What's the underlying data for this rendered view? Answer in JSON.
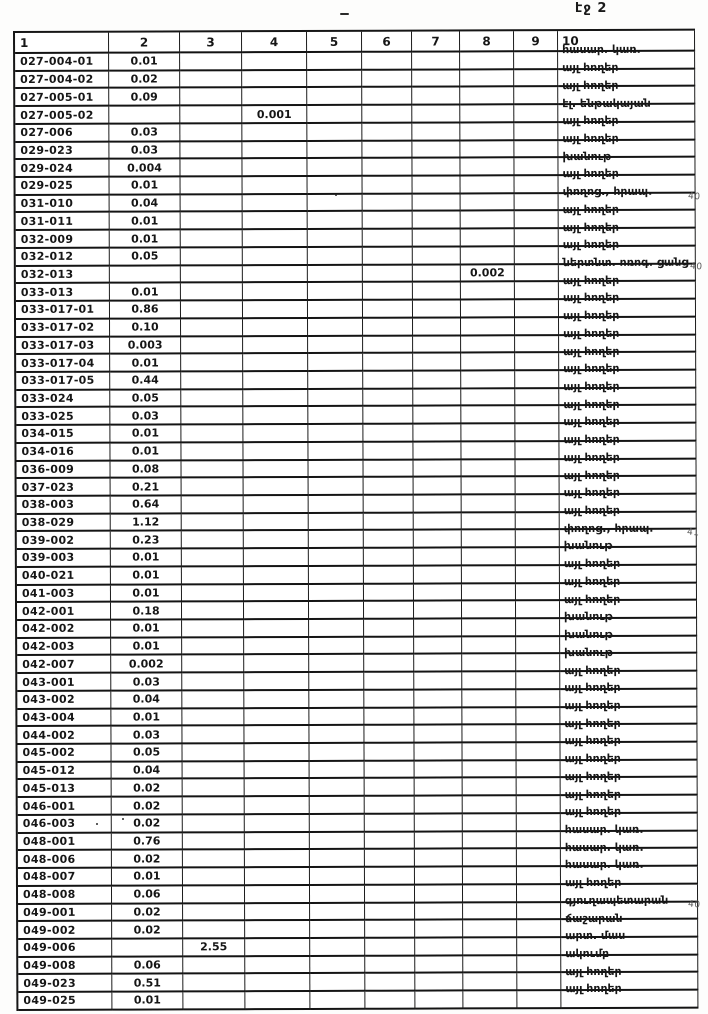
{
  "page": {
    "label": "էջ 2"
  },
  "table": {
    "headers": [
      "1",
      "2",
      "3",
      "4",
      "5",
      "6",
      "7",
      "8",
      "9",
      "10"
    ],
    "rows": [
      {
        "code": "027-004-01",
        "vals": {
          "2": "0.01"
        },
        "label": "հասար. կառ."
      },
      {
        "code": "027-004-02",
        "vals": {
          "2": "0.02"
        },
        "label": "այլ հողեր"
      },
      {
        "code": "027-005-01",
        "vals": {
          "2": "0.09"
        },
        "label": "այլ հողեր"
      },
      {
        "code": "027-005-02",
        "vals": {
          "4": "0.001"
        },
        "label": "էլ. ենթակայան"
      },
      {
        "code": "027-006",
        "vals": {
          "2": "0.03"
        },
        "label": "այլ հողեր"
      },
      {
        "code": "029-023",
        "vals": {
          "2": "0.03"
        },
        "label": "այլ հողեր"
      },
      {
        "code": "029-024",
        "vals": {
          "2": "0.004"
        },
        "label": "խանութ"
      },
      {
        "code": "029-025",
        "vals": {
          "2": "0.01"
        },
        "label": "այլ հողեր"
      },
      {
        "code": "031-010",
        "vals": {
          "2": "0.04"
        },
        "label": "փողոց., հրապ."
      },
      {
        "code": "031-011",
        "vals": {
          "2": "0.01"
        },
        "label": "այլ հողեր"
      },
      {
        "code": "032-009",
        "vals": {
          "2": "0.01"
        },
        "label": "այլ հողեր"
      },
      {
        "code": "032-012",
        "vals": {
          "2": "0.05"
        },
        "label": "այլ հողեր"
      },
      {
        "code": "032-013",
        "vals": {
          "8": "0.002"
        },
        "label": "ներտնտ. ոռոգ. ցանց"
      },
      {
        "code": "033-013",
        "vals": {
          "2": "0.01"
        },
        "label": "այլ հողեր"
      },
      {
        "code": "033-017-01",
        "vals": {
          "2": "0.86"
        },
        "label": "այլ հողեր"
      },
      {
        "code": "033-017-02",
        "vals": {
          "2": "0.10"
        },
        "label": "այլ հողեր"
      },
      {
        "code": "033-017-03",
        "vals": {
          "2": "0.003"
        },
        "label": "այլ հողեր"
      },
      {
        "code": "033-017-04",
        "vals": {
          "2": "0.01"
        },
        "label": "այլ հողեր"
      },
      {
        "code": "033-017-05",
        "vals": {
          "2": "0.44"
        },
        "label": "այլ հողեր"
      },
      {
        "code": "033-024",
        "vals": {
          "2": "0.05"
        },
        "label": "այլ հողեր"
      },
      {
        "code": "033-025",
        "vals": {
          "2": "0.03"
        },
        "label": "այլ հողեր"
      },
      {
        "code": "034-015",
        "vals": {
          "2": "0.01"
        },
        "label": "այլ հողեր"
      },
      {
        "code": "034-016",
        "vals": {
          "2": "0.01"
        },
        "label": "այլ հողեր"
      },
      {
        "code": "036-009",
        "vals": {
          "2": "0.08"
        },
        "label": "այլ հողեր"
      },
      {
        "code": "037-023",
        "vals": {
          "2": "0.21"
        },
        "label": "այլ հողեր"
      },
      {
        "code": "038-003",
        "vals": {
          "2": "0.64"
        },
        "label": "այլ հողեր"
      },
      {
        "code": "038-029",
        "vals": {
          "2": "1.12"
        },
        "label": "այլ հողեր"
      },
      {
        "code": "039-002",
        "vals": {
          "2": "0.23"
        },
        "label": "փողոց., հրապ."
      },
      {
        "code": "039-003",
        "vals": {
          "2": "0.01"
        },
        "label": "խանութ"
      },
      {
        "code": "040-021",
        "vals": {
          "2": "0.01"
        },
        "label": "այլ հողեր"
      },
      {
        "code": "041-003",
        "vals": {
          "2": "0.01"
        },
        "label": "այլ հողեր"
      },
      {
        "code": "042-001",
        "vals": {
          "2": "0.18"
        },
        "label": "այլ հողեր"
      },
      {
        "code": "042-002",
        "vals": {
          "2": "0.01"
        },
        "label": "խանութ"
      },
      {
        "code": "042-003",
        "vals": {
          "2": "0.01"
        },
        "label": "խանութ"
      },
      {
        "code": "042-007",
        "vals": {
          "2": "0.002"
        },
        "label": "խանութ"
      },
      {
        "code": "043-001",
        "vals": {
          "2": "0.03"
        },
        "label": "այլ հողեր"
      },
      {
        "code": "043-002",
        "vals": {
          "2": "0.04"
        },
        "label": "այլ հողեր"
      },
      {
        "code": "043-004",
        "vals": {
          "2": "0.01"
        },
        "label": "այլ հողեր"
      },
      {
        "code": "044-002",
        "vals": {
          "2": "0.03"
        },
        "label": "այլ հողեր"
      },
      {
        "code": "045-002",
        "vals": {
          "2": "0.05"
        },
        "label": "այլ հողեր"
      },
      {
        "code": "045-012",
        "vals": {
          "2": "0.04"
        },
        "label": "այլ հողեր"
      },
      {
        "code": "045-013",
        "vals": {
          "2": "0.02"
        },
        "label": "այլ հողեր"
      },
      {
        "code": "046-001",
        "vals": {
          "2": "0.02"
        },
        "label": "այլ հողեր"
      },
      {
        "code": "046-003",
        "vals": {
          "2": "0.02"
        },
        "label": "այլ հողեր"
      },
      {
        "code": "048-001",
        "vals": {
          "2": "0.76"
        },
        "label": "հասար. կառ."
      },
      {
        "code": "048-006",
        "vals": {
          "2": "0.02"
        },
        "label": "հասար. կառ."
      },
      {
        "code": "048-007",
        "vals": {
          "2": "0.01"
        },
        "label": "հասար. կառ."
      },
      {
        "code": "048-008",
        "vals": {
          "2": "0.06"
        },
        "label": "այլ հողեր"
      },
      {
        "code": "049-001",
        "vals": {
          "2": "0.02"
        },
        "label": "գյուղապետարան"
      },
      {
        "code": "049-002",
        "vals": {
          "2": "0.02"
        },
        "label": "ճաշարան"
      },
      {
        "code": "049-006",
        "vals": {
          "3": "2.55"
        },
        "label": "արտ. մաս"
      },
      {
        "code": "049-008",
        "vals": {
          "2": "0.06"
        },
        "label": "ակումբ"
      },
      {
        "code": "049-023",
        "vals": {
          "2": "0.51"
        },
        "label": "այլ հողեր"
      },
      {
        "code": "049-025",
        "vals": {
          "2": "0.01"
        },
        "label": "այլ հողեր"
      }
    ],
    "marginal_notes": [
      {
        "row": "031-010",
        "text": "40"
      },
      {
        "row": "032-013",
        "text": "40"
      },
      {
        "row": "039-002",
        "text": "41"
      },
      {
        "row": "049-001",
        "text": "40"
      }
    ]
  }
}
